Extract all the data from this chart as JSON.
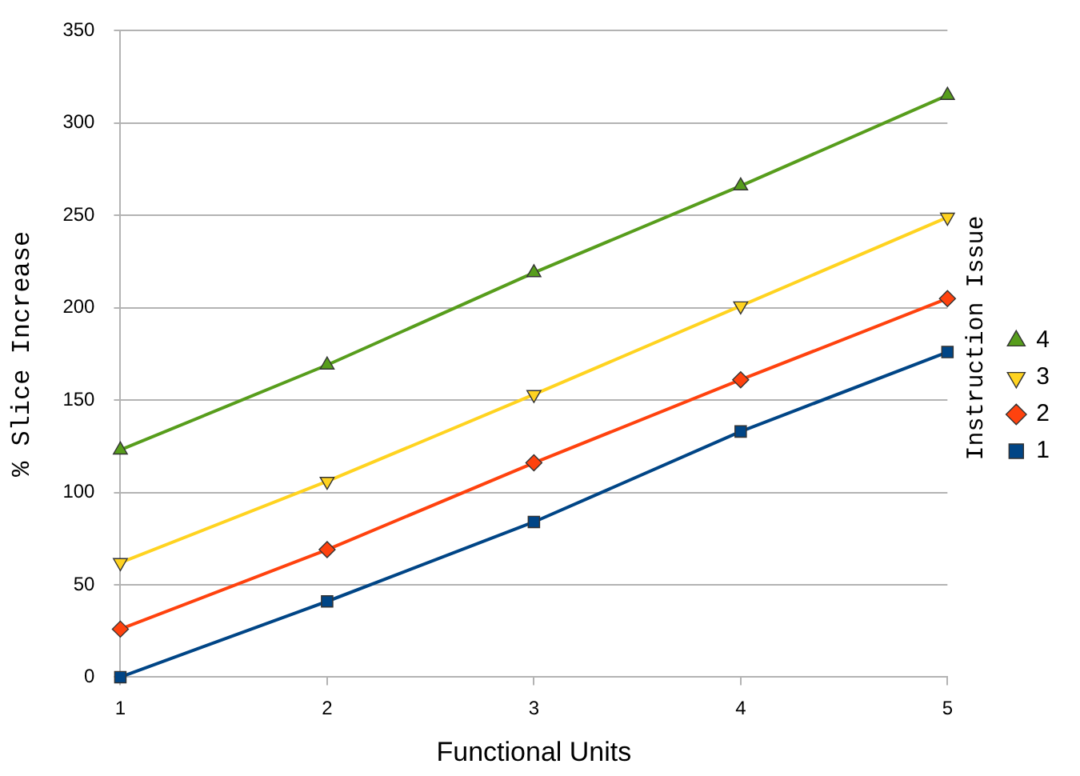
{
  "chart_data": {
    "type": "line",
    "xlabel": "Functional Units",
    "ylabel": "% Slice Increase",
    "legend_title": "Instruction Issue",
    "x": [
      1,
      2,
      3,
      4,
      5
    ],
    "xlim": [
      1,
      5
    ],
    "xticks": [
      1,
      2,
      3,
      4,
      5
    ],
    "ylim": [
      0,
      350
    ],
    "yticks": [
      0,
      50,
      100,
      150,
      200,
      250,
      300,
      350
    ],
    "grid": "y",
    "legend": "right",
    "series": [
      {
        "name": "1",
        "color": "#004586",
        "marker": "square",
        "values": [
          0,
          41,
          84,
          133,
          176
        ]
      },
      {
        "name": "2",
        "color": "#ff420e",
        "marker": "diamond",
        "values": [
          26,
          69,
          116,
          161,
          205
        ]
      },
      {
        "name": "3",
        "color": "#ffd320",
        "marker": "triangle-down",
        "values": [
          62,
          106,
          153,
          201,
          249
        ]
      },
      {
        "name": "4",
        "color": "#579d1c",
        "marker": "triangle",
        "values": [
          123,
          169,
          219,
          266,
          315
        ]
      }
    ]
  }
}
